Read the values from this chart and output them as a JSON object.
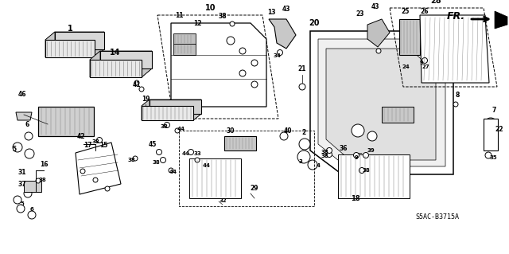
{
  "diagram_code": "S5AC-B3715A",
  "background": "#ffffff",
  "lw_main": 0.9,
  "lw_thin": 0.5,
  "fs_label": 6.5,
  "fs_small": 5.5
}
